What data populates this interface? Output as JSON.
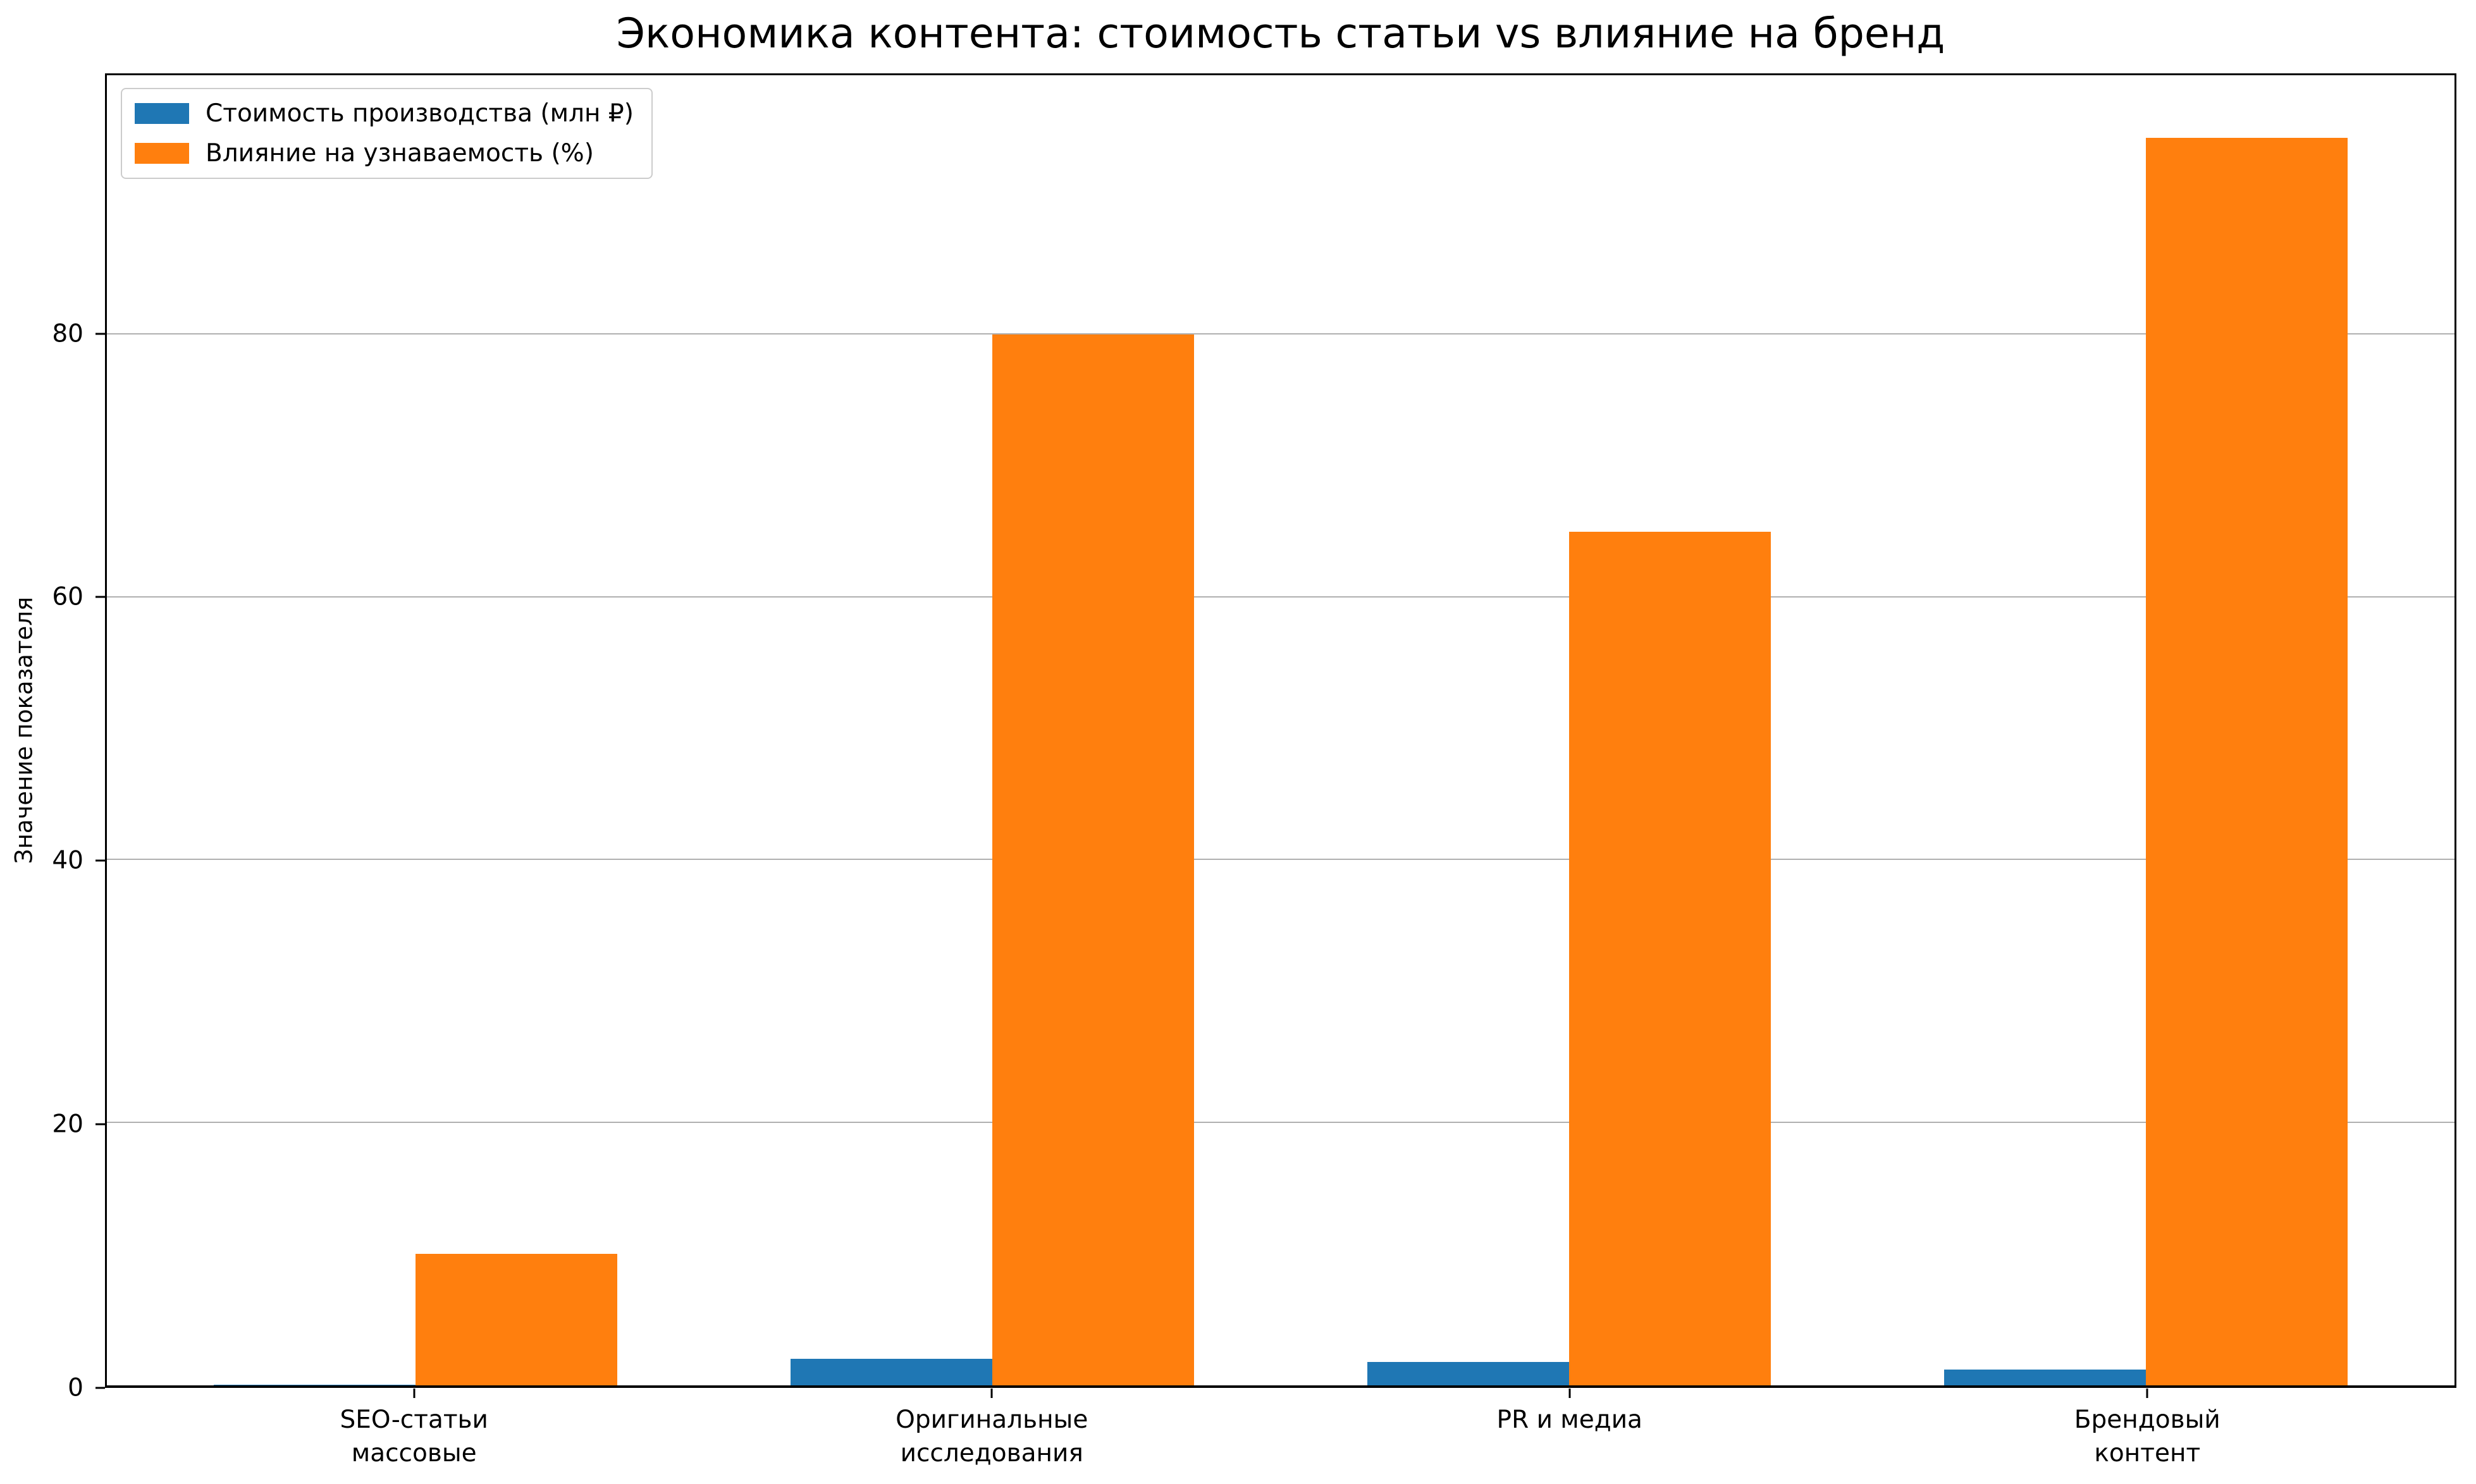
{
  "chart_data": {
    "type": "bar",
    "title": "Экономика контента: стоимость статьи vs влияние на бренд",
    "categories": [
      "SEO-статьи\nмассовые",
      "Оригинальные\nисследования",
      "PR и медиа",
      "Брендовый\nконтент"
    ],
    "series": [
      {
        "name": "Стоимость производства (млн ₽)",
        "color": "#1f77b4",
        "values": [
          0.05,
          2.0,
          1.8,
          1.2
        ]
      },
      {
        "name": "Влияние на узнаваемость (%)",
        "color": "#ff7f0e",
        "values": [
          10,
          80,
          65,
          95
        ]
      }
    ],
    "xlabel": "",
    "ylabel": "Значение показателя",
    "yticks": [
      0,
      20,
      40,
      60,
      80
    ],
    "ylim": [
      0,
      99.75
    ],
    "grid": true,
    "grid_color": "#b0b0b0",
    "legend_position": "upper left",
    "bar_width": 0.35,
    "background": "#ffffff",
    "text_color": "#000000"
  }
}
